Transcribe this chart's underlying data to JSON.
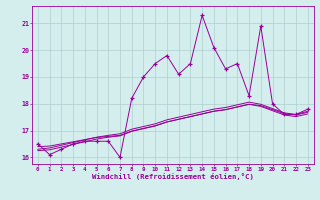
{
  "x_values": [
    0,
    1,
    2,
    3,
    4,
    5,
    6,
    7,
    8,
    9,
    10,
    11,
    12,
    13,
    14,
    15,
    16,
    17,
    18,
    19,
    20,
    21,
    22,
    23
  ],
  "y_main": [
    16.5,
    16.1,
    16.3,
    16.5,
    16.6,
    16.6,
    16.6,
    16.0,
    18.2,
    19.0,
    19.5,
    19.8,
    19.1,
    19.5,
    21.3,
    20.1,
    19.3,
    19.5,
    18.3,
    20.9,
    18.0,
    17.6,
    17.6,
    17.8
  ],
  "y_line1": [
    16.4,
    16.42,
    16.5,
    16.58,
    16.66,
    16.74,
    16.78,
    16.82,
    16.98,
    17.08,
    17.18,
    17.32,
    17.42,
    17.52,
    17.62,
    17.72,
    17.78,
    17.88,
    17.98,
    17.93,
    17.78,
    17.63,
    17.58,
    17.68
  ],
  "y_line2": [
    16.3,
    16.35,
    16.45,
    16.55,
    16.65,
    16.75,
    16.82,
    16.88,
    17.05,
    17.15,
    17.25,
    17.4,
    17.5,
    17.6,
    17.7,
    17.8,
    17.86,
    17.96,
    18.06,
    17.98,
    17.82,
    17.66,
    17.6,
    17.72
  ],
  "y_line3": [
    16.25,
    16.28,
    16.38,
    16.48,
    16.58,
    16.68,
    16.75,
    16.8,
    16.97,
    17.07,
    17.17,
    17.32,
    17.42,
    17.52,
    17.62,
    17.72,
    17.78,
    17.88,
    17.98,
    17.9,
    17.74,
    17.58,
    17.52,
    17.62
  ],
  "color": "#990099",
  "bg_color": "#d4eeed",
  "xlabel": "Windchill (Refroidissement éolien,°C)",
  "ylim": [
    15.75,
    21.65
  ],
  "xlim": [
    -0.5,
    23.5
  ],
  "yticks": [
    16,
    17,
    18,
    19,
    20,
    21
  ],
  "xticks": [
    0,
    1,
    2,
    3,
    4,
    5,
    6,
    7,
    8,
    9,
    10,
    11,
    12,
    13,
    14,
    15,
    16,
    17,
    18,
    19,
    20,
    21,
    22,
    23
  ]
}
